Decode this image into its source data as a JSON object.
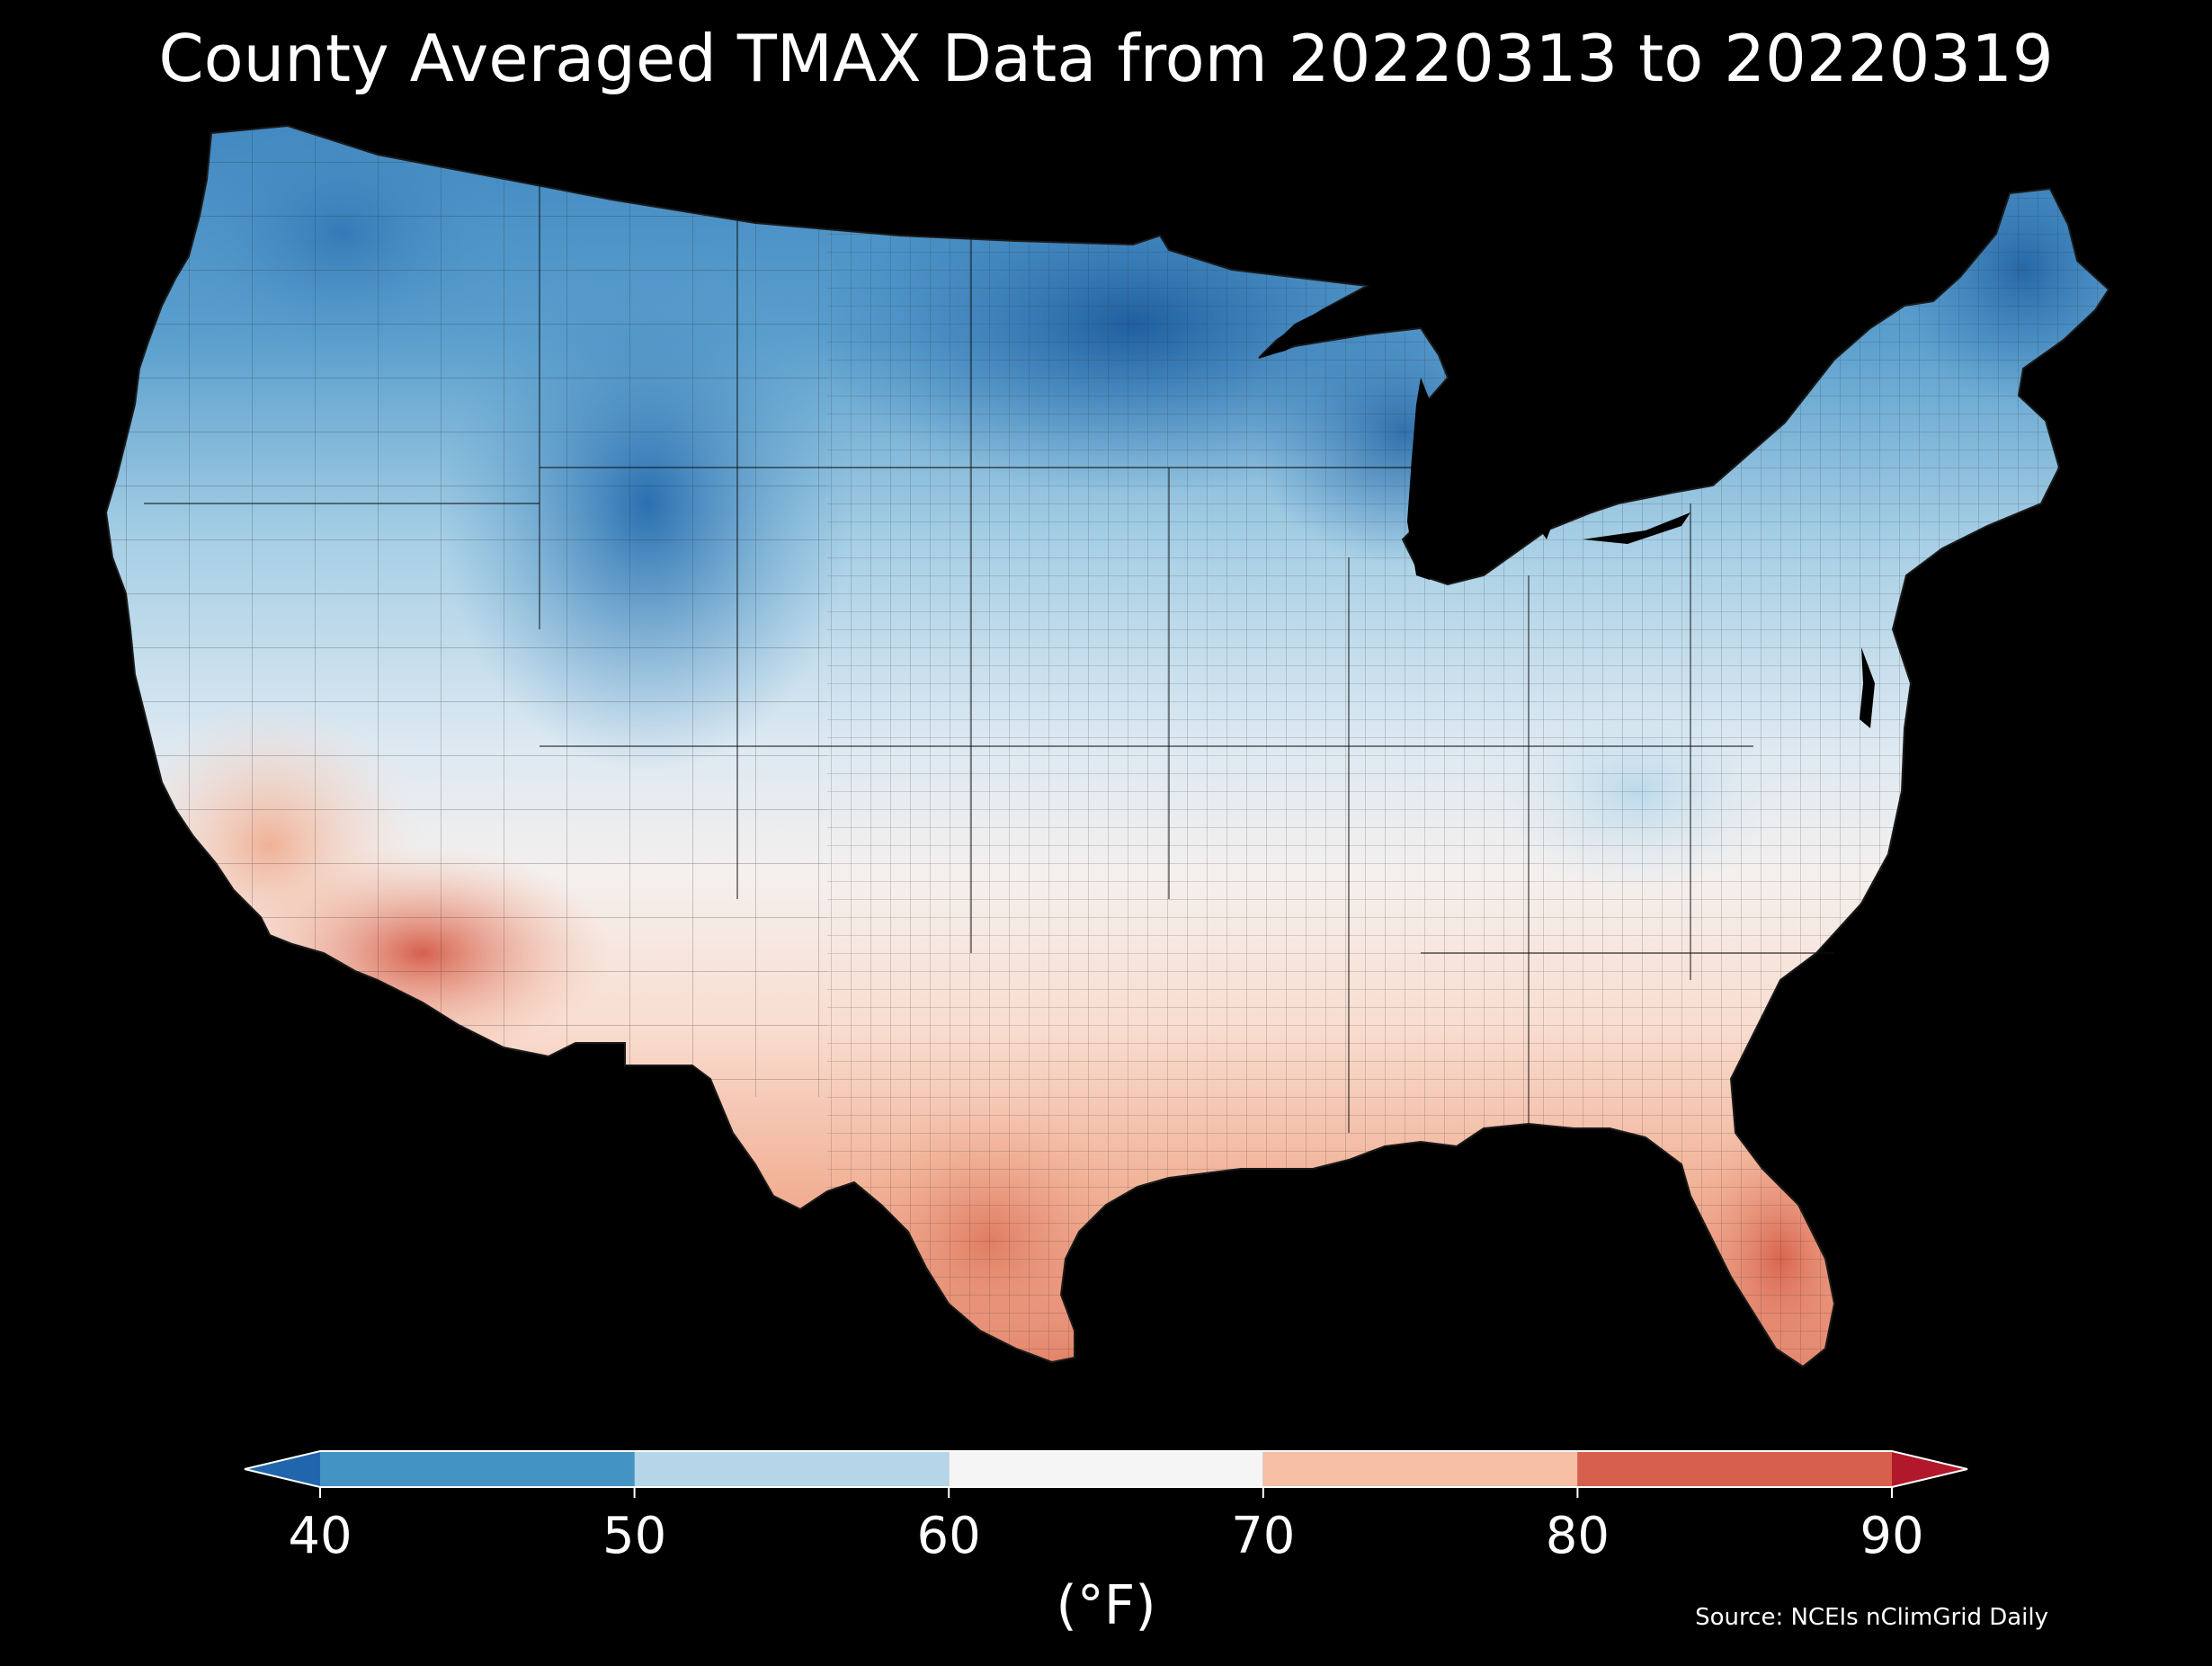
{
  "title": "County Averaged TMAX Data from 20220313 to 20220319",
  "colorbar": {
    "ticks": [
      "40",
      "50",
      "60",
      "70",
      "80",
      "90"
    ],
    "unit": "(°F)",
    "bins": [
      {
        "min": 40,
        "max": 50,
        "color": "#4393c3"
      },
      {
        "min": 50,
        "max": 60,
        "color": "#b4d6e8"
      },
      {
        "min": 60,
        "max": 70,
        "color": "#f5f5f5"
      },
      {
        "min": 70,
        "max": 80,
        "color": "#f6bea5"
      },
      {
        "min": 80,
        "max": 90,
        "color": "#d6604d"
      }
    ],
    "under_color": "#2166ac",
    "over_color": "#b2182b"
  },
  "source": "Source: NCEIs nClimGrid Daily",
  "map": {
    "region": "Contiguous United States (county level)",
    "variable": "TMAX",
    "color_scale": "diverging blue-white-red, 40 to 90 °F",
    "regional_pattern": [
      {
        "area": "Northern Plains / Upper Midwest (ND, MN, WI, MI)",
        "approx_value": 40
      },
      {
        "area": "Northern Rockies / Wyoming / Colorado",
        "approx_value": 42
      },
      {
        "area": "Maine / Northern New England",
        "approx_value": 45
      },
      {
        "area": "Pacific Northwest / Great Basin",
        "approx_value": 52
      },
      {
        "area": "Central Plains / Ohio Valley / Mid-Atlantic",
        "approx_value": 60
      },
      {
        "area": "Southeast / Carolinas",
        "approx_value": 66
      },
      {
        "area": "Southern Plains / Texas interior",
        "approx_value": 72
      },
      {
        "area": "Southern California / Desert Southwest",
        "approx_value": 76
      },
      {
        "area": "South Texas / Florida peninsula",
        "approx_value": 80
      },
      {
        "area": "Southwestern Arizona",
        "approx_value": 84
      }
    ]
  }
}
